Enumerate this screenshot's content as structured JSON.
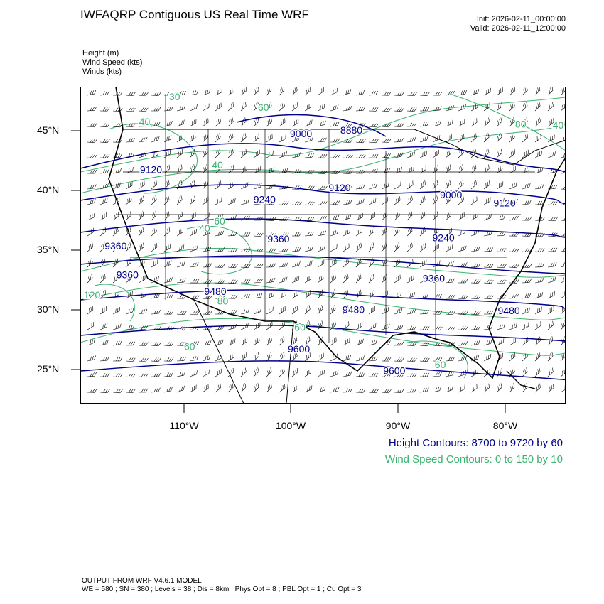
{
  "title": "IWFAQRP Contiguous US Real Time WRF",
  "init": "Init: 2026-02-11_00:00:00",
  "valid": "Valid: 2026-02-11_12:00:00",
  "variables": [
    "Height   (m)",
    "Wind Speed   (kts)",
    "Winds   (kts)"
  ],
  "lat_labels": [
    "45°N",
    "40°N",
    "35°N",
    "30°N",
    "25°N"
  ],
  "lon_labels": [
    "110°W",
    "100°W",
    "90°W",
    "80°W"
  ],
  "height_note": "Height Contours: 8700 to 9720 by 60",
  "wind_note": "Wind Speed Contours: 0 to 150 by 10",
  "footer_line1": "OUTPUT FROM WRF V4.6.1 MODEL",
  "footer_line2": "WE = 580 ; SN = 380 ; Levels = 38 ; Dis = 8km ; Phys Opt = 8 ; PBL Opt = 1 ; Cu Opt = 3",
  "colors": {
    "height": "#00008b",
    "wind": "#3cb371",
    "borders": "#000000"
  },
  "map_extent": {
    "lon": [
      -119.8,
      -74.5
    ],
    "lat": [
      22.1,
      48.6
    ]
  },
  "height_contours": [
    {
      "value": "8880",
      "lon": -94.5,
      "lat": 44.9
    },
    {
      "value": "9000",
      "lon": -99.2,
      "lat": 44.6
    },
    {
      "value": "9000",
      "lon": -85.2,
      "lat": 39.5
    },
    {
      "value": "9120",
      "lon": -113.2,
      "lat": 41.6
    },
    {
      "value": "9120",
      "lon": -95.6,
      "lat": 40.1
    },
    {
      "value": "9120",
      "lon": -80.2,
      "lat": 38.8
    },
    {
      "value": "9240",
      "lon": -102.6,
      "lat": 39.1
    },
    {
      "value": "9240",
      "lon": -85.9,
      "lat": 35.9
    },
    {
      "value": "9360",
      "lon": -101.3,
      "lat": 35.8
    },
    {
      "value": "9360",
      "lon": -116.5,
      "lat": 35.2
    },
    {
      "value": "9360",
      "lon": -86.8,
      "lat": 32.5
    },
    {
      "value": "9360",
      "lon": -115.4,
      "lat": 32.8
    },
    {
      "value": "9480",
      "lon": -107.2,
      "lat": 31.4
    },
    {
      "value": "9480",
      "lon": -94.3,
      "lat": 29.9
    },
    {
      "value": "9480",
      "lon": -79.8,
      "lat": 29.8
    },
    {
      "value": "9600",
      "lon": -99.4,
      "lat": 26.6
    },
    {
      "value": "9600",
      "lon": -90.5,
      "lat": 24.8
    }
  ],
  "wind_contours": [
    {
      "value": "40",
      "lon": -113.8,
      "lat": 45.6
    },
    {
      "value": "30",
      "lon": -111.0,
      "lat": 47.7
    },
    {
      "value": "60",
      "lon": -102.7,
      "lat": 46.8
    },
    {
      "value": "40",
      "lon": -107.0,
      "lat": 42.0
    },
    {
      "value": "80",
      "lon": -78.7,
      "lat": 45.4
    },
    {
      "value": "40",
      "lon": -75.2,
      "lat": 45.3
    },
    {
      "value": "60",
      "lon": -106.8,
      "lat": 37.3
    },
    {
      "value": "40",
      "lon": -108.2,
      "lat": 36.7
    },
    {
      "value": "80",
      "lon": -106.5,
      "lat": 30.6
    },
    {
      "value": "120",
      "lon": -118.7,
      "lat": 31.1
    },
    {
      "value": "60",
      "lon": -109.6,
      "lat": 26.8
    },
    {
      "value": "60",
      "lon": -86.2,
      "lat": 25.3
    },
    {
      "value": "60",
      "lon": -99.3,
      "lat": 28.4
    }
  ]
}
